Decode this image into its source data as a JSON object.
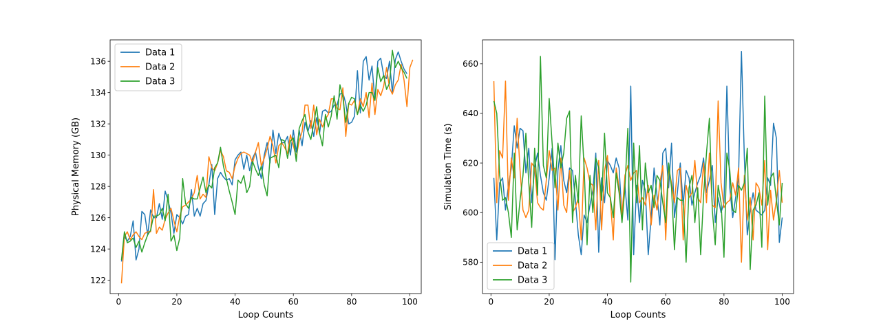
{
  "chart_data": [
    {
      "type": "line",
      "title": "",
      "xlabel": "Loop Counts",
      "ylabel": "Physical Memory (GB)",
      "xlim": [
        -2.9,
        103.9
      ],
      "ylim": [
        121.15,
        137.37
      ],
      "xticks": [
        0,
        20,
        40,
        60,
        80,
        100
      ],
      "yticks": [
        122,
        124,
        126,
        128,
        130,
        132,
        134,
        136
      ],
      "grid": false,
      "legend": "upper-left",
      "x_start": 1,
      "series": [
        {
          "name": "Data 1",
          "color": "#1f77b4",
          "values": [
            123.2,
            124.8,
            124.5,
            124.8,
            125.8,
            123.3,
            124.0,
            126.4,
            126.2,
            124.9,
            126.5,
            126.0,
            126.0,
            126.9,
            125.9,
            127.7,
            127.1,
            126.3,
            125.0,
            126.2,
            126.0,
            125.6,
            126.1,
            126.2,
            127.8,
            126.1,
            126.6,
            126.1,
            126.9,
            127.1,
            128.1,
            129.4,
            126.2,
            128.5,
            128.9,
            128.6,
            128.4,
            128.5,
            128.1,
            129.7,
            130.0,
            130.2,
            129.1,
            130.0,
            129.0,
            129.8,
            130.2,
            129.2,
            128.5,
            130.0,
            130.8,
            129.5,
            131.6,
            130.1,
            131.4,
            130.8,
            130.8,
            131.2,
            130.0,
            131.6,
            130.2,
            131.6,
            130.6,
            132.1,
            131.5,
            132.2,
            131.2,
            132.4,
            131.4,
            132.8,
            132.9,
            132.7,
            132.8,
            133.2,
            133.2,
            133.9,
            134.0,
            133.3,
            132.0,
            132.1,
            132.5,
            135.4,
            132.7,
            136.0,
            136.3,
            134.8,
            135.7,
            133.5,
            136.0,
            136.2,
            135.1,
            134.9,
            136.0,
            134.0,
            136.1,
            136.6,
            136.0,
            135.5,
            135.2
          ]
        },
        {
          "name": "Data 2",
          "color": "#ff7f0e",
          "values": [
            121.8,
            124.8,
            125.1,
            124.6,
            124.9,
            125.1,
            124.8,
            124.6,
            125.0,
            125.1,
            125.1,
            127.8,
            125.0,
            125.4,
            125.2,
            125.9,
            126.3,
            126.6,
            125.8,
            125.1,
            126.1,
            126.7,
            126.8,
            127.0,
            127.2,
            127.6,
            128.7,
            127.2,
            127.5,
            127.3,
            129.9,
            129.2,
            129.0,
            129.5,
            130.3,
            129.9,
            129.0,
            128.9,
            128.5,
            129.3,
            129.8,
            130.1,
            130.2,
            130.1,
            130.0,
            129.5,
            130.2,
            130.8,
            129.3,
            129.8,
            130.4,
            131.2,
            130.6,
            129.5,
            130.6,
            130.8,
            130.5,
            130.1,
            131.3,
            130.6,
            129.9,
            130.9,
            131.5,
            133.2,
            133.2,
            131.7,
            133.2,
            131.3,
            132.3,
            131.8,
            132.3,
            132.6,
            133.6,
            133.6,
            133.0,
            132.9,
            134.3,
            131.2,
            133.3,
            133.2,
            133.5,
            132.6,
            133.6,
            133.1,
            134.0,
            132.4,
            134.6,
            132.6,
            134.2,
            133.8,
            134.4,
            135.6,
            134.3,
            133.9,
            134.5,
            134.8,
            135.8,
            134.8,
            133.1,
            135.6,
            136.1
          ]
        },
        {
          "name": "Data 3",
          "color": "#2ca02c",
          "values": [
            123.3,
            125.1,
            124.4,
            124.5,
            124.7,
            124.1,
            124.5,
            123.8,
            124.4,
            124.9,
            125.2,
            126.1,
            126.1,
            126.2,
            126.6,
            125.8,
            127.5,
            124.5,
            124.9,
            123.9,
            124.7,
            128.5,
            126.9,
            126.6,
            127.3,
            127.2,
            127.2,
            127.9,
            128.6,
            127.6,
            128.1,
            127.9,
            129.2,
            129.5,
            130.5,
            129.3,
            128.5,
            127.7,
            127.0,
            126.2,
            128.4,
            128.2,
            128.7,
            127.6,
            128.0,
            129.6,
            129.1,
            128.7,
            129.3,
            128.1,
            127.4,
            129.8,
            129.9,
            130.0,
            129.2,
            131.0,
            130.9,
            129.8,
            130.9,
            131.1,
            129.6,
            131.7,
            132.2,
            132.6,
            131.5,
            131.0,
            132.0,
            133.1,
            131.4,
            130.6,
            132.6,
            131.8,
            132.5,
            133.8,
            132.3,
            134.5,
            133.7,
            132.1,
            133.3,
            133.7,
            133.6,
            132.6,
            133.2,
            132.8,
            133.2,
            134.0,
            134.0,
            133.5,
            135.6,
            134.7,
            135.1,
            134.2,
            134.6,
            136.7,
            135.6,
            136.0,
            135.6,
            135.3,
            134.9
          ]
        }
      ]
    },
    {
      "type": "line",
      "title": "",
      "xlabel": "Loop Counts",
      "ylabel": "Simulation Time (s)",
      "xlim": [
        -2.9,
        103.9
      ],
      "ylim": [
        567.35,
        669.65
      ],
      "xticks": [
        0,
        20,
        40,
        60,
        80,
        100
      ],
      "yticks": [
        580,
        600,
        620,
        640,
        660
      ],
      "grid": false,
      "legend": "lower-left",
      "x_start": 1,
      "series": [
        {
          "name": "Data 1",
          "color": "#1f77b4",
          "values": [
            614,
            589,
            612,
            614,
            601,
            611,
            618,
            635,
            626,
            634,
            633,
            616,
            626,
            604,
            618,
            624,
            615,
            608,
            605,
            614,
            626,
            581,
            617,
            627,
            613,
            608,
            618,
            617,
            605,
            591,
            583,
            599,
            596,
            603,
            609,
            624,
            584,
            614,
            604,
            621,
            619,
            616,
            622,
            618,
            598,
            611,
            597,
            651,
            583,
            611,
            596,
            613,
            609,
            583,
            598,
            618,
            607,
            595,
            624,
            626,
            610,
            628,
            598,
            608,
            620,
            603,
            617,
            614,
            603,
            608,
            612,
            615,
            622,
            608,
            613,
            619,
            596,
            606,
            600,
            604,
            651,
            610,
            598,
            606,
            614,
            665,
            622,
            591,
            601,
            608,
            601,
            600,
            599,
            601,
            614,
            611,
            636,
            630,
            588,
            598
          ]
        },
        {
          "name": "Data 2",
          "color": "#ff7f0e",
          "values": [
            653,
            604,
            625,
            622,
            653,
            605,
            622,
            614,
            638,
            617,
            601,
            598,
            601,
            620,
            618,
            604,
            602,
            601,
            613,
            625,
            617,
            618,
            601,
            622,
            603,
            600,
            617,
            600,
            602,
            606,
            589,
            622,
            618,
            612,
            611,
            593,
            621,
            593,
            617,
            623,
            605,
            589,
            618,
            610,
            599,
            615,
            619,
            613,
            616,
            617,
            604,
            606,
            603,
            611,
            595,
            607,
            601,
            612,
            619,
            589,
            618,
            612,
            604,
            617,
            618,
            589,
            611,
            606,
            608,
            621,
            606,
            604,
            620,
            604,
            624,
            603,
            602,
            645,
            612,
            602,
            604,
            605,
            612,
            607,
            618,
            580,
            615,
            597,
            606,
            589,
            612,
            610,
            603,
            621,
            585,
            609,
            597,
            605,
            617,
            604
          ]
        },
        {
          "name": "Data 3",
          "color": "#2ca02c",
          "values": [
            645,
            640,
            615,
            605,
            606,
            600,
            590,
            624,
            593,
            605,
            615,
            632,
            612,
            594,
            626,
            607,
            663,
            619,
            614,
            646,
            628,
            610,
            628,
            618,
            624,
            638,
            641,
            596,
            615,
            604,
            639,
            618,
            587,
            615,
            600,
            622,
            618,
            605,
            632,
            608,
            606,
            598,
            616,
            608,
            596,
            610,
            634,
            572,
            628,
            604,
            627,
            593,
            620,
            608,
            611,
            602,
            615,
            613,
            604,
            596,
            620,
            610,
            585,
            606,
            605,
            605,
            580,
            610,
            615,
            596,
            610,
            583,
            607,
            624,
            638,
            601,
            587,
            611,
            604,
            582,
            624,
            617,
            601,
            600,
            611,
            609,
            612,
            626,
            577,
            601,
            603,
            608,
            586,
            647,
            603,
            614,
            616,
            605,
            595,
            612
          ]
        }
      ]
    }
  ]
}
